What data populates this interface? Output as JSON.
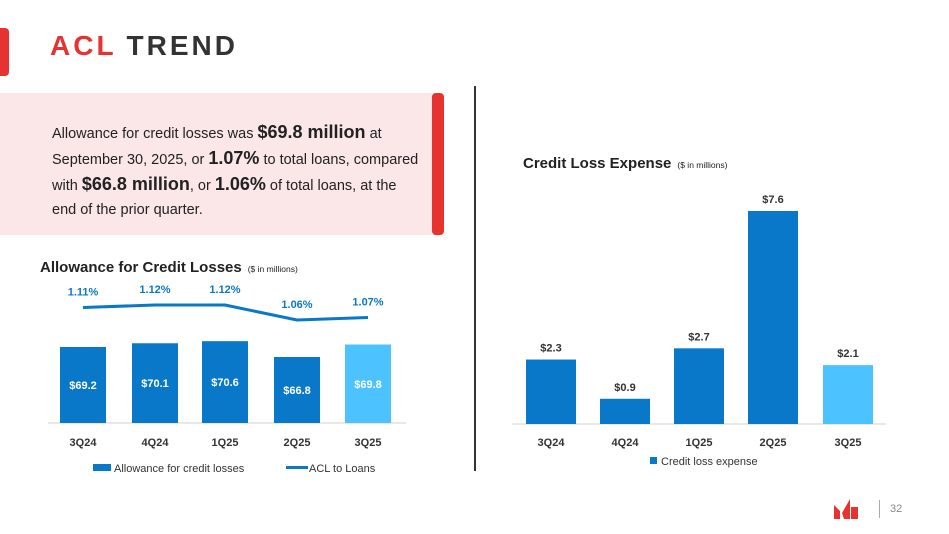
{
  "slide": {
    "title_accent": "ACL",
    "title_rest": "TREND",
    "page_number": "32",
    "colors": {
      "accent": "#e8322f",
      "bar": "#0a78c8",
      "bar_highlight": "#4cc3ff",
      "line": "#0a78c8"
    }
  },
  "summary": {
    "p1": "Allowance for credit losses was ",
    "v1": "$69.8 million",
    "p2": " at September 30, 2025, or ",
    "v2": "1.07%",
    "p3": " to total loans, compared with ",
    "v3": "$66.8 million",
    "p4": ", or ",
    "v4": "1.06%",
    "p5": " of total loans, at the end of the prior quarter."
  },
  "chart_data": [
    {
      "id": "acl",
      "type": "bar",
      "title": "Allowance for Credit Losses",
      "unit_note": "($ in millions)",
      "categories": [
        "3Q24",
        "4Q24",
        "1Q25",
        "2Q25",
        "3Q25"
      ],
      "series": [
        {
          "name": "Allowance for credit losses",
          "values": [
            69.2,
            70.1,
            70.6,
            66.8,
            69.8
          ],
          "labels": [
            "$69.2",
            "$70.1",
            "$70.6",
            "$66.8",
            "$69.8"
          ]
        },
        {
          "name": "ACL to Loans",
          "type": "line",
          "values": [
            1.11,
            1.12,
            1.12,
            1.06,
            1.07
          ],
          "labels": [
            "1.11%",
            "1.12%",
            "1.12%",
            "1.06%",
            "1.07%"
          ]
        }
      ],
      "legend": "bottom"
    },
    {
      "id": "cle",
      "type": "bar",
      "title": "Credit Loss Expense",
      "unit_note": "($ in millions)",
      "categories": [
        "3Q24",
        "4Q24",
        "1Q25",
        "2Q25",
        "3Q25"
      ],
      "series": [
        {
          "name": "Credit loss expense",
          "values": [
            2.3,
            0.9,
            2.7,
            7.6,
            2.1
          ],
          "labels": [
            "$2.3",
            "$0.9",
            "$2.7",
            "$7.6",
            "$2.1"
          ]
        }
      ],
      "ylim": [
        0,
        8
      ],
      "legend": "bottom"
    }
  ]
}
